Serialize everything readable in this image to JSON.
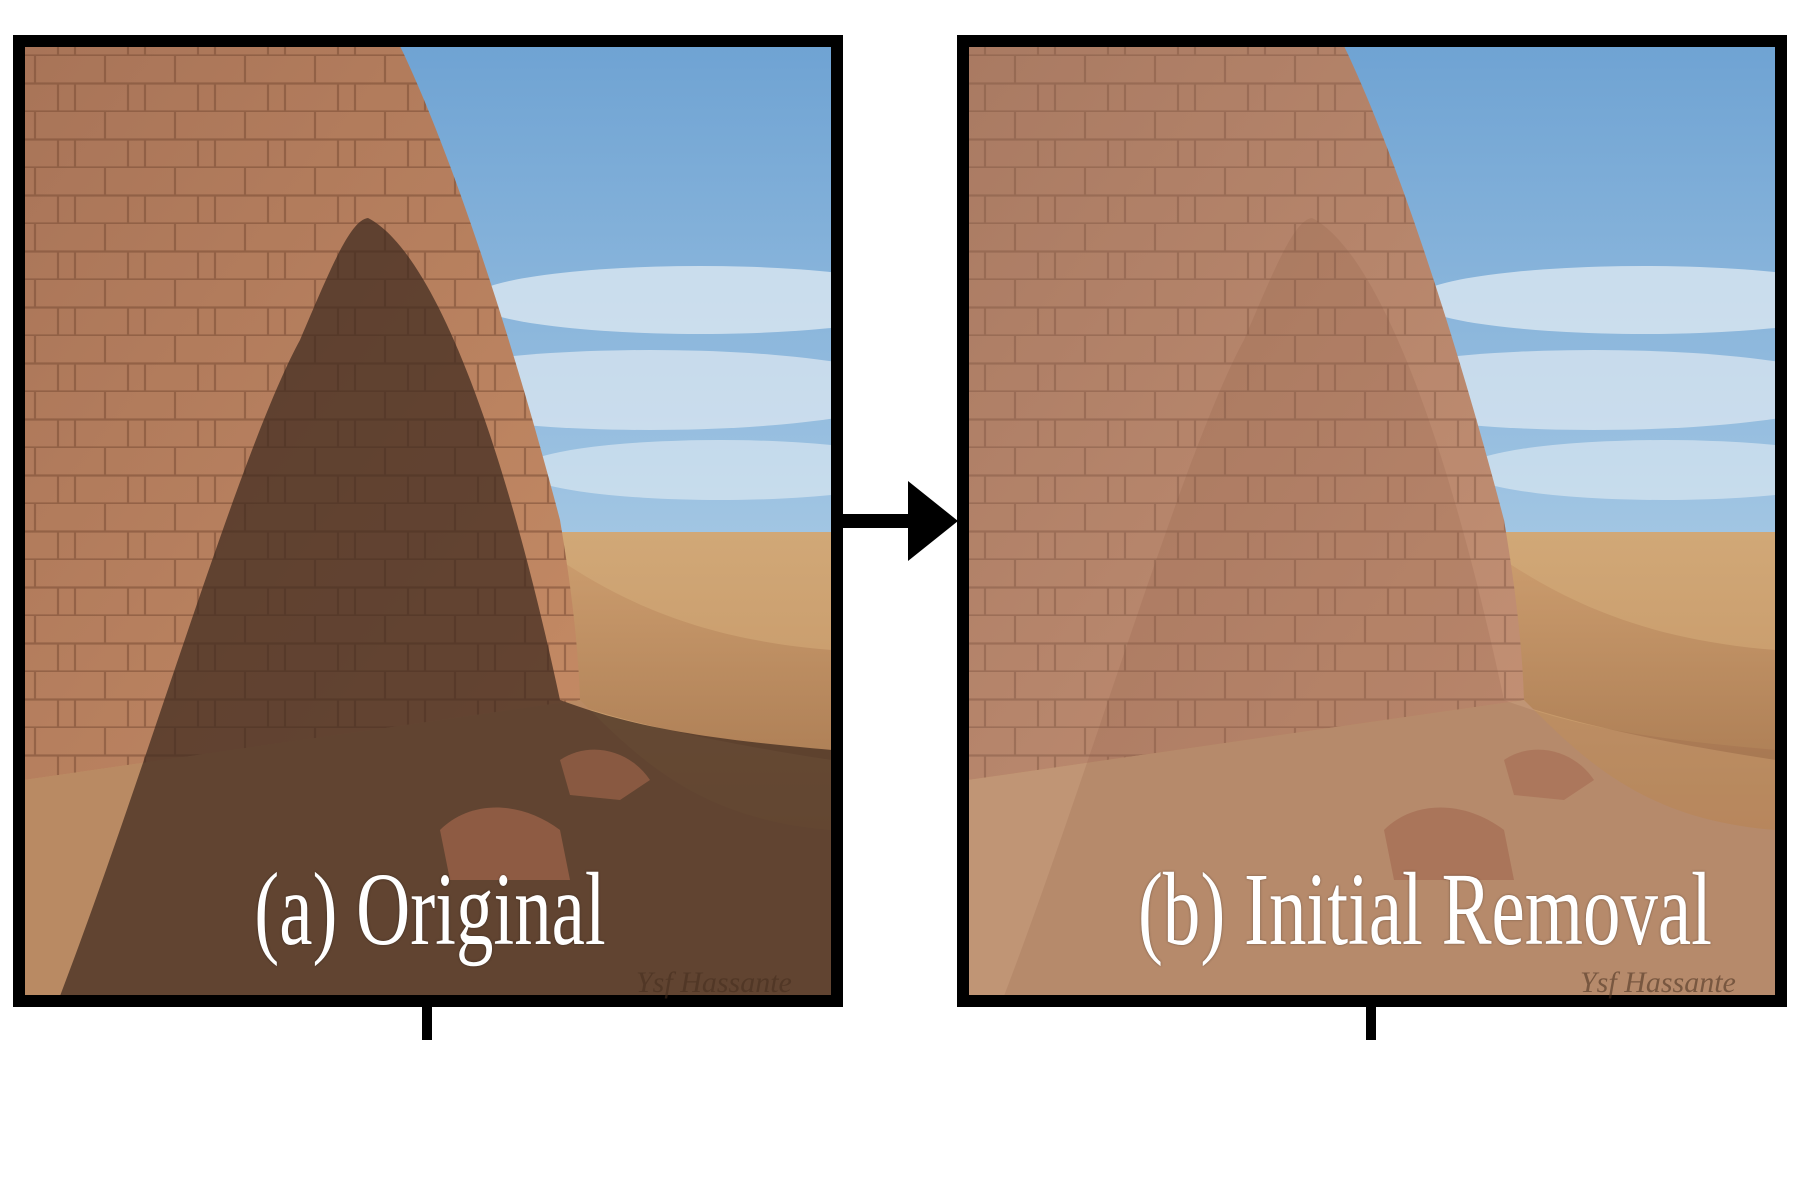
{
  "panels": [
    {
      "caption": "(a) Original",
      "watermark": "Ysf Hassante",
      "content": "desert-pyramid-photo-with-shadow"
    },
    {
      "caption": "(b) Initial Removal",
      "watermark": "Ysf Hassante",
      "content": "desert-pyramid-photo-shadow-removed"
    }
  ],
  "connector": {
    "icon": "right-arrow-icon"
  },
  "colors": {
    "frame": "#000000",
    "sky": "#8fb9de",
    "cloud": "#dce8f1",
    "stone": "#b07858",
    "sand": "#c79b6e",
    "shadow": "#4a3224",
    "caption": "#ffffff"
  }
}
